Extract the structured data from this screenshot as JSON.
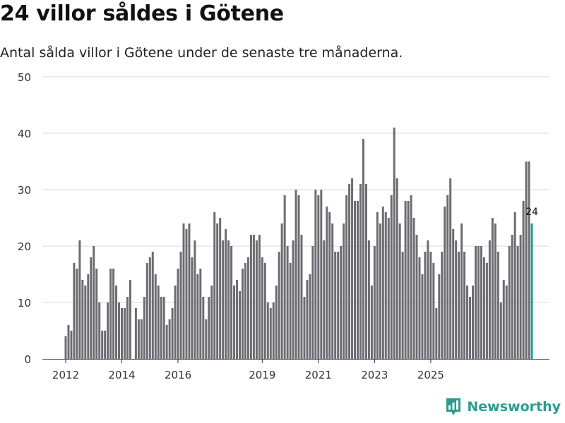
{
  "title": "24 villor såldes i Götene",
  "subtitle": "Antal sålda villor i Götene under de senaste tre månaderna.",
  "brand": {
    "name": "Newsworthy",
    "icon": "newsworthy-logo-icon",
    "color": "#2a9d8f"
  },
  "chart_data": {
    "type": "bar",
    "title": "24 villor såldes i Götene",
    "subtitle": "Antal sålda villor i Götene under de senaste tre månaderna.",
    "xlabel": "",
    "ylabel": "",
    "ylim": [
      0,
      50
    ],
    "yticks": [
      0,
      10,
      20,
      30,
      40,
      50
    ],
    "xticks": [
      {
        "label": "2012",
        "index": 0
      },
      {
        "label": "2014",
        "index": 20
      },
      {
        "label": "2016",
        "index": 40
      },
      {
        "label": "2019",
        "index": 70
      },
      {
        "label": "2021",
        "index": 90
      },
      {
        "label": "2023",
        "index": 110
      },
      {
        "label": "2025",
        "index": 130
      }
    ],
    "grid": true,
    "bar_color": "#6d6c72",
    "highlight_color": "#1a9e8f",
    "highlight_label": "24",
    "values": [
      4,
      6,
      5,
      17,
      16,
      21,
      14,
      13,
      15,
      18,
      20,
      16,
      10,
      5,
      5,
      10,
      16,
      16,
      13,
      10,
      9,
      9,
      11,
      14,
      0,
      9,
      7,
      7,
      11,
      17,
      18,
      19,
      15,
      13,
      11,
      11,
      6,
      7,
      9,
      13,
      16,
      19,
      24,
      23,
      24,
      18,
      21,
      15,
      16,
      11,
      7,
      11,
      13,
      26,
      24,
      25,
      21,
      23,
      21,
      20,
      13,
      14,
      12,
      16,
      17,
      18,
      22,
      22,
      21,
      22,
      18,
      17,
      10,
      9,
      10,
      13,
      19,
      24,
      29,
      20,
      17,
      21,
      30,
      29,
      22,
      11,
      14,
      15,
      20,
      30,
      29,
      30,
      21,
      27,
      26,
      24,
      19,
      19,
      20,
      24,
      29,
      31,
      32,
      28,
      28,
      31,
      39,
      31,
      21,
      13,
      20,
      26,
      24,
      27,
      26,
      25,
      29,
      41,
      32,
      24,
      19,
      28,
      28,
      29,
      25,
      22,
      18,
      15,
      19,
      21,
      19,
      17,
      9,
      15,
      19,
      27,
      29,
      32,
      23,
      21,
      19,
      24,
      19,
      13,
      11,
      13,
      20,
      20,
      20,
      18,
      17,
      21,
      25,
      24,
      19,
      10,
      14,
      13,
      20,
      22,
      26,
      20,
      22,
      28,
      35,
      35,
      24
    ]
  }
}
